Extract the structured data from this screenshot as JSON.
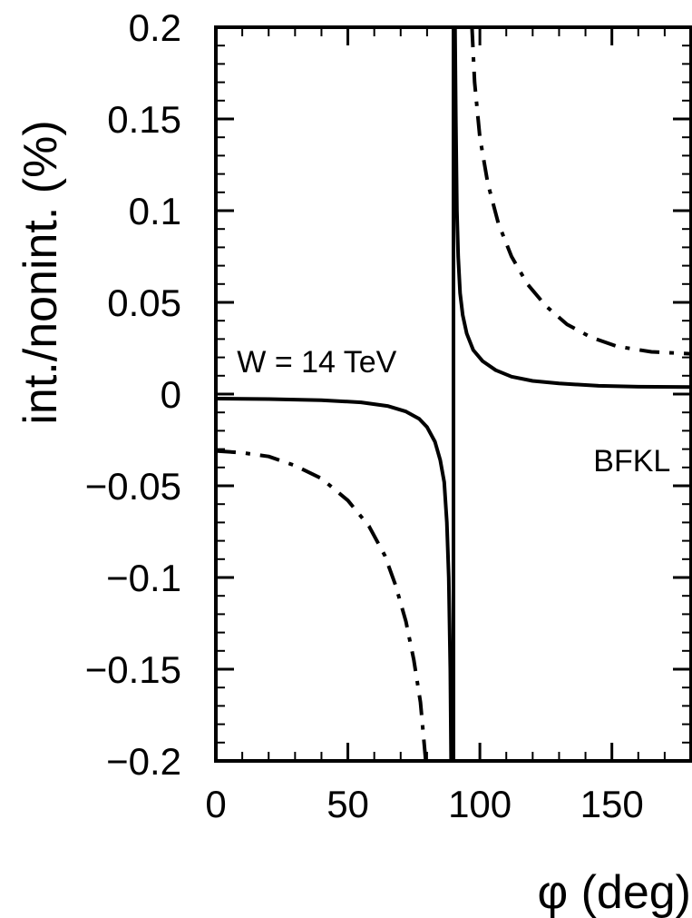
{
  "chart_data": {
    "type": "line",
    "title": "",
    "xlabel": "φ (deg)",
    "ylabel": "int./nonint. (%)",
    "xlim": [
      0,
      180
    ],
    "ylim": [
      -0.2,
      0.2
    ],
    "grid": false,
    "x_ticks": [
      0,
      50,
      100,
      150
    ],
    "y_ticks": [
      -0.2,
      -0.15,
      -0.1,
      -0.05,
      0,
      0.05,
      0.1,
      0.15,
      0.2
    ],
    "x_tick_labels": [
      "0",
      "50",
      "100",
      "150"
    ],
    "y_tick_labels": [
      "−0.2",
      "−0.15",
      "−0.1",
      "−0.05",
      "0",
      "0.05",
      "0.1",
      "0.15",
      "0.2"
    ],
    "annotations": [
      {
        "text": "W = 14 TeV",
        "x": 8,
        "y": 0.012
      },
      {
        "text": "BFKL",
        "x": 143,
        "y": -0.042
      }
    ],
    "series": [
      {
        "style": "solid",
        "segments": [
          [
            [
              0,
              -0.0025
            ],
            [
              20,
              -0.0027
            ],
            [
              40,
              -0.0033
            ],
            [
              55,
              -0.0045
            ],
            [
              65,
              -0.0065
            ],
            [
              72,
              -0.0095
            ],
            [
              77,
              -0.0135
            ],
            [
              80,
              -0.018
            ],
            [
              83,
              -0.026
            ],
            [
              85,
              -0.036
            ],
            [
              86.5,
              -0.048
            ],
            [
              87.5,
              -0.07
            ],
            [
              88.2,
              -0.1
            ],
            [
              88.8,
              -0.15
            ],
            [
              89.1,
              -0.2
            ]
          ],
          [
            [
              90.6,
              0.2
            ],
            [
              90.9,
              0.15
            ],
            [
              91.3,
              0.1
            ],
            [
              91.8,
              0.075
            ],
            [
              92.5,
              0.055
            ],
            [
              93.5,
              0.043
            ],
            [
              95,
              0.033
            ],
            [
              97.5,
              0.024
            ],
            [
              101,
              0.018
            ],
            [
              106,
              0.013
            ],
            [
              112,
              0.0095
            ],
            [
              120,
              0.0072
            ],
            [
              130,
              0.0058
            ],
            [
              145,
              0.0045
            ],
            [
              160,
              0.004
            ],
            [
              180,
              0.0038
            ]
          ]
        ]
      },
      {
        "style": "dashdot",
        "segments": [
          [
            [
              0,
              -0.031
            ],
            [
              10,
              -0.032
            ],
            [
              20,
              -0.034
            ],
            [
              30,
              -0.039
            ],
            [
              40,
              -0.046
            ],
            [
              50,
              -0.058
            ],
            [
              58,
              -0.072
            ],
            [
              64,
              -0.088
            ],
            [
              68,
              -0.104
            ],
            [
              72,
              -0.124
            ],
            [
              75,
              -0.145
            ],
            [
              77.5,
              -0.168
            ],
            [
              79.5,
              -0.2
            ]
          ],
          [
            [
              97,
              0.2
            ],
            [
              98,
              0.17
            ],
            [
              100,
              0.14
            ],
            [
              103,
              0.115
            ],
            [
              107,
              0.093
            ],
            [
              112,
              0.075
            ],
            [
              118,
              0.06
            ],
            [
              125,
              0.048
            ],
            [
              133,
              0.038
            ],
            [
              142,
              0.031
            ],
            [
              152,
              0.026
            ],
            [
              165,
              0.023
            ],
            [
              180,
              0.022
            ]
          ]
        ]
      }
    ],
    "vertical_line": {
      "x": 90,
      "style": "solid"
    }
  }
}
